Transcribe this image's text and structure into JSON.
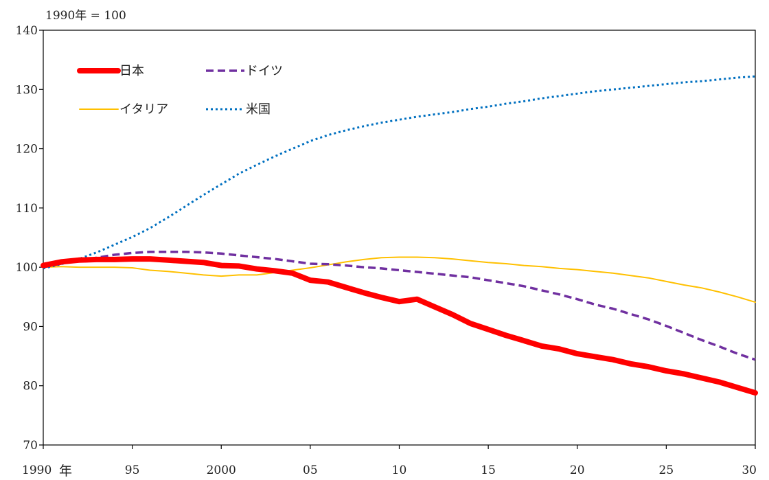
{
  "chart_data": {
    "type": "line",
    "unit_label": "1990年 = 100",
    "x_start_label": "1990",
    "x_unit_label": "年",
    "xlim": [
      1990,
      2030
    ],
    "ylim": [
      70,
      140
    ],
    "x_ticks": [
      {
        "value": 1995,
        "label": "95"
      },
      {
        "value": 2000,
        "label": "2000"
      },
      {
        "value": 2005,
        "label": "05"
      },
      {
        "value": 2010,
        "label": "10"
      },
      {
        "value": 2015,
        "label": "15"
      },
      {
        "value": 2020,
        "label": "20"
      },
      {
        "value": 2025,
        "label": "25"
      },
      {
        "value": 2030,
        "label": "30"
      }
    ],
    "y_ticks": [
      70,
      80,
      90,
      100,
      110,
      120,
      130,
      140
    ],
    "grid": false,
    "legend_position": "top-left",
    "x": [
      1990,
      1991,
      1992,
      1993,
      1994,
      1995,
      1996,
      1997,
      1998,
      1999,
      2000,
      2001,
      2002,
      2003,
      2004,
      2005,
      2006,
      2007,
      2008,
      2009,
      2010,
      2011,
      2012,
      2013,
      2014,
      2015,
      2016,
      2017,
      2018,
      2019,
      2020,
      2021,
      2022,
      2023,
      2024,
      2025,
      2026,
      2027,
      2028,
      2029,
      2030
    ],
    "series": [
      {
        "name": "日本",
        "color": "#ff0000",
        "style": "solid",
        "width": 8,
        "values": [
          100.3,
          100.9,
          101.2,
          101.3,
          101.3,
          101.4,
          101.4,
          101.2,
          101.0,
          100.8,
          100.3,
          100.2,
          99.7,
          99.4,
          99.0,
          97.8,
          97.5,
          96.6,
          95.7,
          94.9,
          94.2,
          94.6,
          93.3,
          92.0,
          90.5,
          89.5,
          88.5,
          87.6,
          86.7,
          86.2,
          85.4,
          84.9,
          84.4,
          83.7,
          83.2,
          82.5,
          82.0,
          81.3,
          80.6,
          79.7,
          78.8
        ]
      },
      {
        "name": "ドイツ",
        "color": "#7030a0",
        "style": "dashed",
        "width": 3.5,
        "values": [
          100.0,
          100.6,
          101.1,
          101.6,
          102.1,
          102.4,
          102.6,
          102.6,
          102.6,
          102.5,
          102.3,
          102.0,
          101.7,
          101.4,
          101.0,
          100.6,
          100.5,
          100.3,
          100.0,
          99.8,
          99.5,
          99.2,
          98.9,
          98.6,
          98.3,
          97.8,
          97.3,
          96.8,
          96.1,
          95.4,
          94.6,
          93.7,
          93.0,
          92.1,
          91.2,
          90.1,
          88.9,
          87.7,
          86.6,
          85.4,
          84.4
        ]
      },
      {
        "name": "イタリア",
        "color": "#ffc000",
        "style": "solid",
        "width": 2,
        "values": [
          100.0,
          100.1,
          100.0,
          100.0,
          100.0,
          99.9,
          99.5,
          99.3,
          99.0,
          98.7,
          98.5,
          98.7,
          98.7,
          99.1,
          99.5,
          99.9,
          100.4,
          100.9,
          101.3,
          101.6,
          101.7,
          101.7,
          101.6,
          101.4,
          101.1,
          100.8,
          100.6,
          100.3,
          100.1,
          99.8,
          99.6,
          99.3,
          99.0,
          98.6,
          98.2,
          97.6,
          97.0,
          96.5,
          95.8,
          95.0,
          94.1
        ]
      },
      {
        "name": "米国",
        "color": "#0070c0",
        "style": "dotted",
        "width": 3,
        "values": [
          99.8,
          100.5,
          101.4,
          102.5,
          103.8,
          105.1,
          106.6,
          108.4,
          110.3,
          112.2,
          114.0,
          115.8,
          117.3,
          118.7,
          120.0,
          121.3,
          122.3,
          123.1,
          123.8,
          124.4,
          124.9,
          125.4,
          125.8,
          126.2,
          126.7,
          127.1,
          127.6,
          128.0,
          128.5,
          128.9,
          129.3,
          129.7,
          130.0,
          130.3,
          130.6,
          130.9,
          131.2,
          131.4,
          131.7,
          132.0,
          132.2
        ]
      }
    ]
  }
}
